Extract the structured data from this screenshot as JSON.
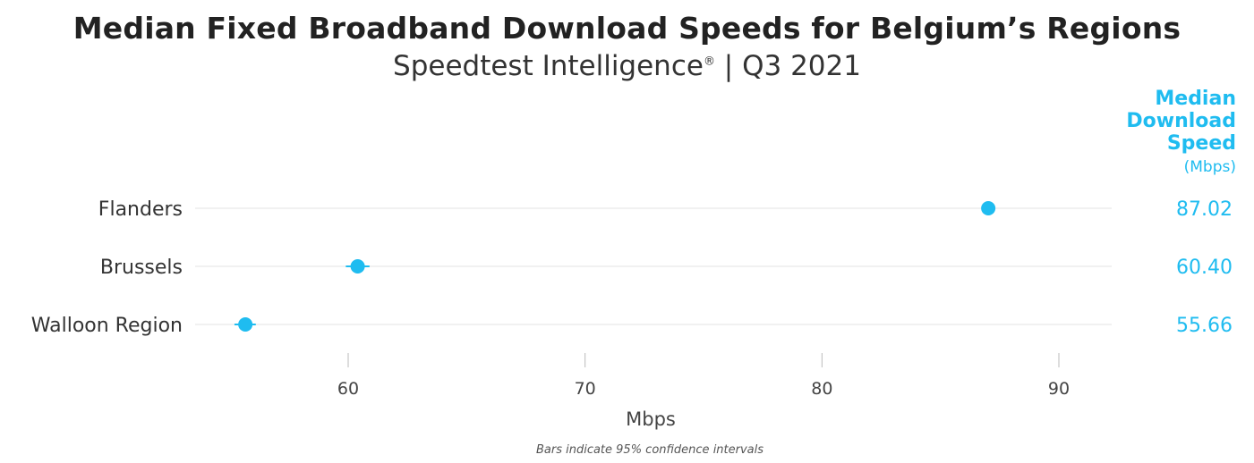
{
  "title": "Median Fixed Broadband Download Speeds for Belgium’s Regions",
  "subtitle": "Speedtest Intelligence",
  "subtitle_mark": "®",
  "subtitle_period": " | Q3 2021",
  "value_header": "Median Download Speed",
  "value_header_lines": [
    "Median",
    "Download",
    "Speed"
  ],
  "value_unit": "(Mbps)",
  "footnote": "Bars indicate 95% confidence intervals",
  "colors": {
    "accent": "#1fbcf0",
    "grid": "#e3e3e3",
    "text": "#333333"
  },
  "chart_data": {
    "type": "scatter",
    "categories": [
      "Flanders",
      "Brussels",
      "Walloon Region"
    ],
    "values": [
      87.02,
      60.4,
      55.66
    ],
    "value_labels": [
      "87.02",
      "60.40",
      "55.66"
    ],
    "ci_low": [
      86.8,
      59.9,
      55.2
    ],
    "ci_high": [
      87.2,
      60.9,
      56.1
    ],
    "xlabel": "Mbps",
    "ylabel": "",
    "xlim": [
      52.5,
      92.3
    ],
    "xticks": [
      60,
      70,
      80,
      90
    ],
    "grid": true,
    "legend": "none"
  }
}
